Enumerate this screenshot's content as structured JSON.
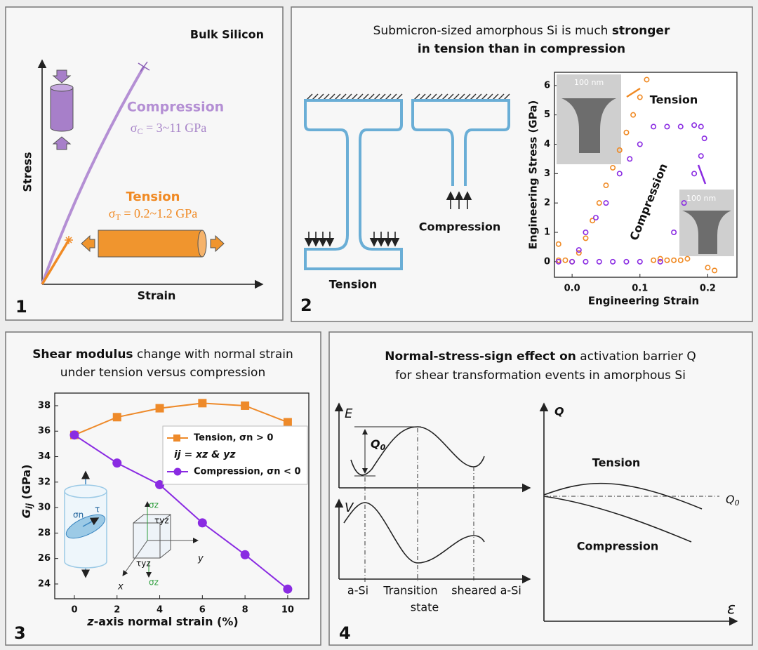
{
  "panels": {
    "p1": {
      "number": "1",
      "title": "Bulk Silicon",
      "ylabel": "Stress",
      "xlabel": "Strain",
      "compression": "Compression",
      "sc_sym": "σ",
      "sc_sub": "C",
      "sc_rest": " = 3~11 GPa",
      "tension": "Tension",
      "st_sym": "σ",
      "st_sub": "T",
      "st_rest": " = 0.2~1.2 GPa"
    },
    "p2": {
      "number": "2",
      "title_line1": "Submicron-sized  amorphous Si is much ",
      "title_bold1": "stronger",
      "title_line2": "in tension than in compression",
      "tension": "Tension",
      "compression": "Compression"
    },
    "p3": {
      "number": "3"
    },
    "p4": {
      "number": "4",
      "title_bold": "Normal-stress-sign effect on",
      "title_rest": " activation barrier Q",
      "title_line2": "for shear transformation events in amorphous Si",
      "e": "E",
      "q0_sym": "Q",
      "q0_sub": "0",
      "v": "V",
      "asi": "a-Si",
      "transition": "Transition",
      "state": "state",
      "sheared": "sheared a-Si",
      "q": "Q",
      "tension": "Tension",
      "compression": "Compression",
      "q0r_sym": "Q",
      "q0r_sub": "0",
      "eps": "ε"
    }
  },
  "chart_data": [
    {
      "type": "scatter",
      "xlabel": "Engineering Strain",
      "ylabel": "Engineering Stress (GPa)",
      "xlim": [
        -0.026,
        0.243
      ],
      "ylim": [
        -0.53,
        6.45
      ],
      "xticks": [
        {
          "value": 0,
          "label": "0.0"
        },
        0.1,
        0.2
      ],
      "yticks": [
        0,
        1,
        2,
        3,
        4,
        5,
        6
      ],
      "annotations": [
        "100 nm",
        "100 nm"
      ],
      "series": [
        {
          "name": "Tension",
          "color": "#f08a24",
          "x": [
            -0.02,
            -0.01,
            0.0,
            0.01,
            0.02,
            0.03,
            0.04,
            0.05,
            0.06,
            0.07,
            0.08,
            0.09,
            0.1,
            0.11,
            0.12,
            0.13,
            0.14,
            0.15,
            0.16,
            0.17,
            0.2,
            0.21,
            -0.02
          ],
          "values": [
            0.05,
            0.05,
            0,
            0.3,
            0.8,
            1.4,
            2.0,
            2.6,
            3.2,
            3.8,
            4.4,
            5.0,
            5.6,
            6.2,
            0.05,
            0.1,
            0.05,
            0.05,
            0.05,
            0.1,
            -0.2,
            -0.3,
            0.6
          ]
        },
        {
          "name": "Compression",
          "color": "#8a2be2",
          "x": [
            -0.02,
            0.0,
            0.02,
            0.04,
            0.06,
            0.08,
            0.1,
            0.01,
            0.02,
            0.035,
            0.05,
            0.07,
            0.085,
            0.1,
            0.12,
            0.14,
            0.16,
            0.18,
            0.19,
            0.195,
            0.19,
            0.18,
            0.165,
            0.15,
            0.13
          ],
          "values": [
            0,
            0,
            0,
            0,
            0,
            0,
            0,
            0.4,
            1.0,
            1.5,
            2.0,
            3.0,
            3.5,
            4.0,
            4.6,
            4.6,
            4.6,
            4.65,
            4.6,
            4.2,
            3.6,
            3.0,
            2.0,
            1.0,
            0
          ]
        }
      ]
    },
    {
      "type": "line",
      "title_bold": "Shear modulus",
      "title_rest": " change with normal strain",
      "subtitle": "under tension versus compression",
      "xlabel_italic": "z",
      "xlabel_rest": "-axis normal strain (%)",
      "ylabel_main": "G",
      "ylabel_sub": "ij",
      "ylabel_rest": " (GPa)",
      "legend_note": "ij = xz & yz",
      "inset_labels": [
        "σn",
        "τ",
        "σz",
        "τyz",
        "y",
        "τyz",
        "σz",
        "x"
      ],
      "x": [
        0,
        2,
        4,
        6,
        8,
        10
      ],
      "xlim": [
        -0.92,
        10.99
      ],
      "ylim": [
        22.84,
        38.99
      ],
      "xticks": [
        0,
        2,
        4,
        6,
        8,
        10
      ],
      "yticks": [
        24,
        26,
        28,
        30,
        32,
        34,
        36,
        38
      ],
      "series": [
        {
          "name": "Tension, σn > 0",
          "color": "#ee8a2a",
          "marker": "square",
          "values": [
            35.7,
            37.1,
            37.8,
            38.2,
            38.0,
            36.7
          ]
        },
        {
          "name": "Compression, σn < 0",
          "color": "#8a2be2",
          "marker": "circle",
          "values": [
            35.7,
            33.5,
            31.8,
            28.8,
            26.3,
            23.6
          ]
        }
      ]
    }
  ]
}
